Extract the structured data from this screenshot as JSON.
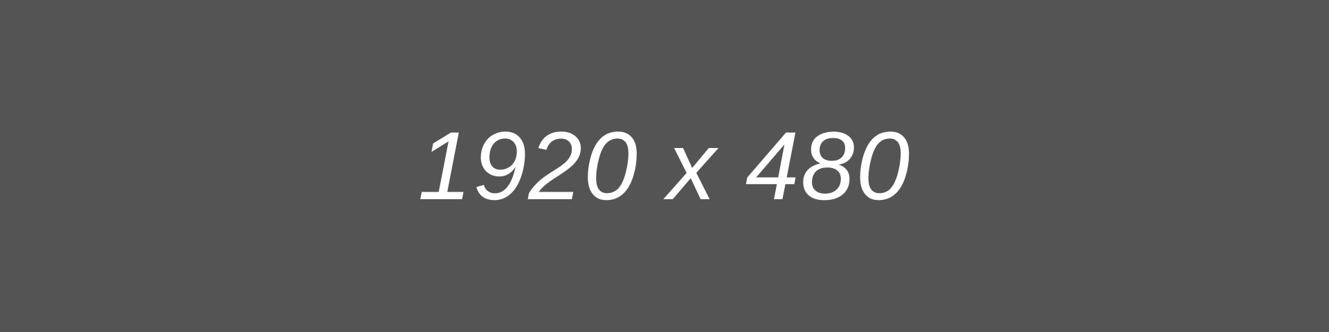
{
  "placeholder": {
    "text": "1920 x 480",
    "background_color": "#545454",
    "text_color": "#ffffff"
  }
}
